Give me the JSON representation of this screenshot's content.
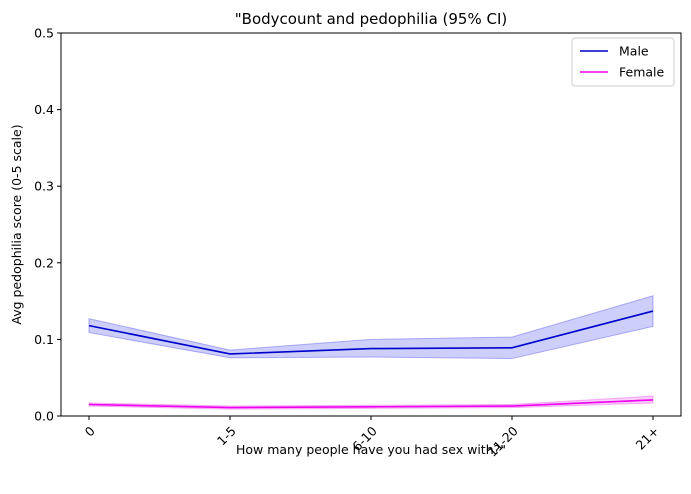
{
  "chart_data": {
    "type": "line",
    "title": "\"Bodycount and pedophilia (95% CI)",
    "xlabel": "How many people have you had sex with?\"",
    "ylabel": "Avg pedophilia score (0-5 scale)",
    "categories": [
      "0",
      "1-5",
      "6-10",
      "11-20",
      "21+"
    ],
    "ylim": [
      0,
      0.5
    ],
    "yticks": [
      "0.0",
      "0.1",
      "0.2",
      "0.3",
      "0.4",
      "0.5"
    ],
    "grid": false,
    "legend_position": "top-right",
    "series": [
      {
        "name": "Male",
        "color": "#0000cc",
        "band_color": "#6666ee",
        "values": [
          0.118,
          0.081,
          0.088,
          0.089,
          0.137
        ],
        "ci_low": [
          0.109,
          0.076,
          0.077,
          0.075,
          0.117
        ],
        "ci_high": [
          0.127,
          0.086,
          0.1,
          0.103,
          0.157
        ]
      },
      {
        "name": "Female",
        "color": "#ee00ee",
        "band_color": "#ee66ee",
        "values": [
          0.015,
          0.011,
          0.012,
          0.013,
          0.021
        ],
        "ci_low": [
          0.013,
          0.009,
          0.01,
          0.011,
          0.017
        ],
        "ci_high": [
          0.017,
          0.013,
          0.014,
          0.015,
          0.026
        ]
      }
    ]
  }
}
